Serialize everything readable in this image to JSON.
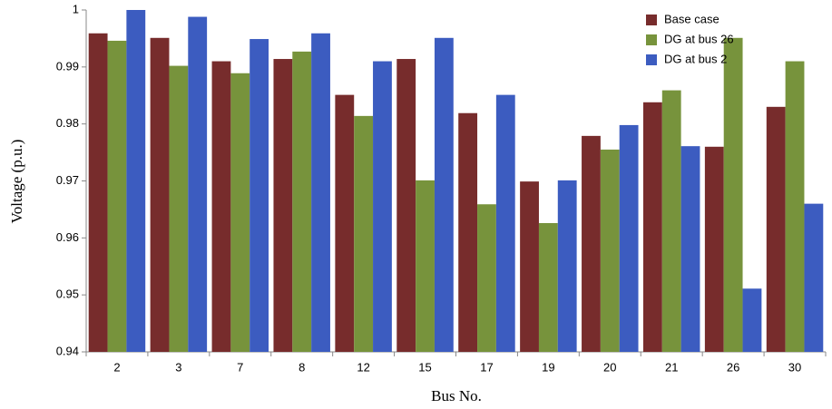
{
  "chart_data": {
    "type": "bar",
    "y_label": "Voltage (p.u.)",
    "x_label": "Bus No.",
    "categories": [
      "2",
      "3",
      "7",
      "8",
      "12",
      "15",
      "17",
      "19",
      "20",
      "21",
      "26",
      "30"
    ],
    "series": [
      {
        "name": "Base case",
        "color": "#772c2c",
        "values": [
          0.9959,
          0.9951,
          0.991,
          0.9914,
          0.9851,
          0.9914,
          0.9819,
          0.9699,
          0.9779,
          0.9838,
          0.976,
          0.983
        ]
      },
      {
        "name": "DG at bus 26",
        "color": "#77933c",
        "values": [
          0.9946,
          0.9902,
          0.9889,
          0.9927,
          0.9814,
          0.9701,
          0.9659,
          0.9626,
          0.9755,
          0.9859,
          0.9951,
          0.991
        ]
      },
      {
        "name": "DG at bus 2",
        "color": "#3c5cc0",
        "values": [
          1.0,
          0.9988,
          0.9949,
          0.9959,
          0.991,
          0.9951,
          0.9851,
          0.9701,
          0.9798,
          0.9761,
          0.9511,
          0.966
        ]
      }
    ],
    "ylim": [
      0.94,
      1
    ],
    "yticks": [
      0.94,
      0.95,
      0.96,
      0.97,
      0.98,
      0.99,
      1
    ],
    "grid": false,
    "legend": "top-right"
  }
}
